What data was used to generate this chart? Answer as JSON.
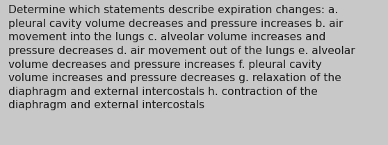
{
  "text": "Determine which statements describe expiration changes: a.\npleural cavity volume decreases and pressure increases b. air\nmovement into the lungs c. alveolar volume increases and\npressure decreases d. air movement out of the lungs e. alveolar\nvolume decreases and pressure increases f. pleural cavity\nvolume increases and pressure decreases g. relaxation of the\ndiaphragm and external intercostals h. contraction of the\ndiaphragm and external intercostals",
  "background_color": "#c8c8c8",
  "text_color": "#1a1a1a",
  "font_size": 11.2,
  "fig_width": 5.58,
  "fig_height": 2.09,
  "dpi": 100
}
